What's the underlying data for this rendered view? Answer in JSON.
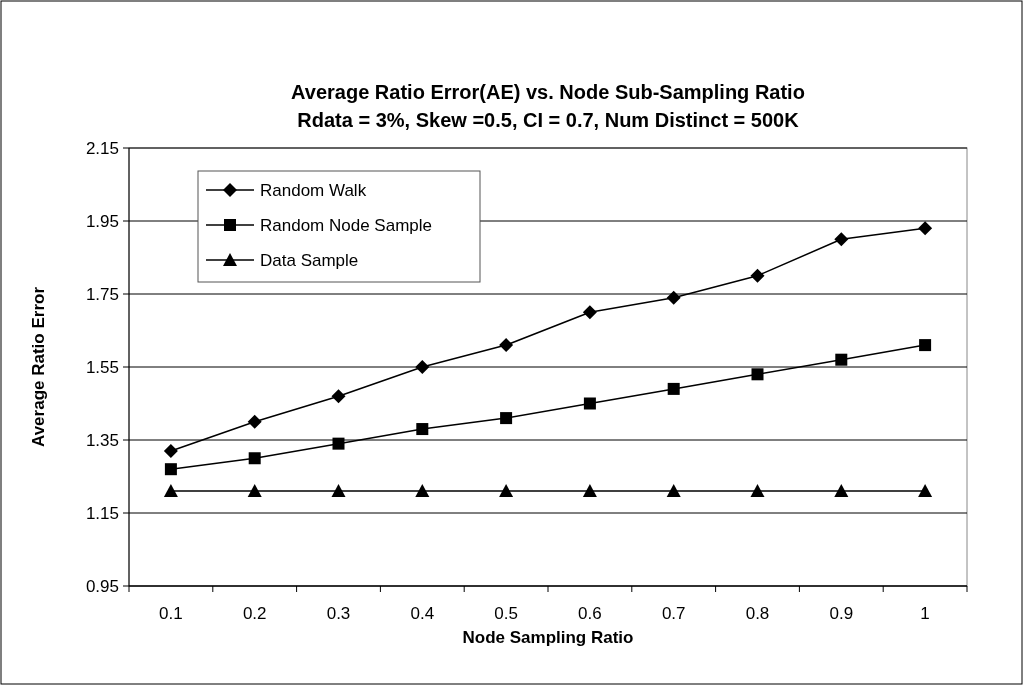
{
  "chart_data": {
    "type": "line",
    "title": "Average Ratio Error(AE) vs. Node Sub-Sampling Ratio",
    "subtitle": "Rdata = 3%, Skew =0.5, CI = 0.7, Num  Distinct = 500K",
    "xlabel": "Node Sampling Ratio",
    "ylabel": "Average Ratio Error",
    "categories": [
      "0.1",
      "0.2",
      "0.3",
      "0.4",
      "0.5",
      "0.6",
      "0.7",
      "0.8",
      "0.9",
      "1"
    ],
    "series": [
      {
        "name": "Random Walk",
        "color": "#000000",
        "marker": "diamond",
        "values": [
          1.32,
          1.4,
          1.47,
          1.55,
          1.61,
          1.7,
          1.74,
          1.8,
          1.9,
          1.93
        ]
      },
      {
        "name": "Random Node Sample",
        "color": "#000000",
        "marker": "square",
        "values": [
          1.27,
          1.3,
          1.34,
          1.38,
          1.41,
          1.45,
          1.49,
          1.53,
          1.57,
          1.61
        ]
      },
      {
        "name": "Data Sample",
        "color": "#000000",
        "marker": "triangle",
        "values": [
          1.21,
          1.21,
          1.21,
          1.21,
          1.21,
          1.21,
          1.21,
          1.21,
          1.21,
          1.21
        ]
      }
    ],
    "ylim": [
      0.95,
      2.15
    ],
    "yticks": [
      0.95,
      1.15,
      1.35,
      1.55,
      1.75,
      1.95,
      2.15
    ],
    "grid": "y",
    "legend": "top left",
    "line_style": "solid"
  }
}
